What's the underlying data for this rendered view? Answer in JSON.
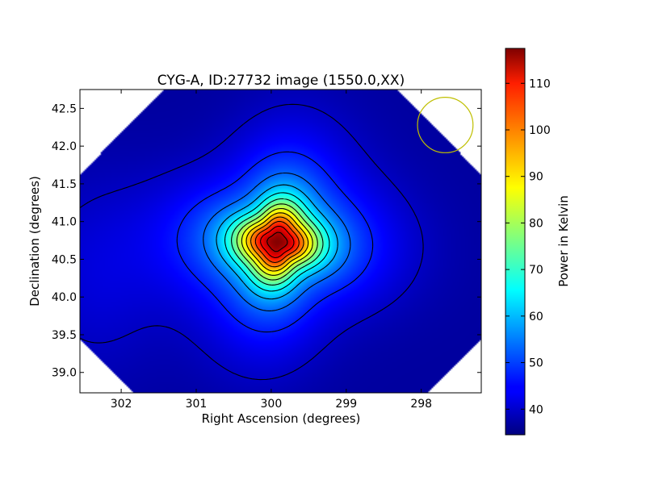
{
  "chart_data": {
    "type": "heatmap",
    "title": "CYG-A, ID:27732 image (1550.0,XX)",
    "xlabel": "Right Ascension (degrees)",
    "ylabel": "Declination (degrees)",
    "xlim": [
      302.55,
      297.2
    ],
    "ylim": [
      38.73,
      42.75
    ],
    "x_ticks": [
      302,
      301,
      300,
      299,
      298
    ],
    "x_tick_labels": [
      "302",
      "301",
      "300",
      "299",
      "298"
    ],
    "y_ticks": [
      39.0,
      39.5,
      40.0,
      40.5,
      41.0,
      41.5,
      42.0,
      42.5
    ],
    "y_tick_labels": [
      "39.0",
      "39.5",
      "40.0",
      "40.5",
      "41.0",
      "41.5",
      "42.0",
      "42.5"
    ],
    "colormap": "jet",
    "colorbar": {
      "label": "Power in Kelvin",
      "range": [
        34.5,
        117.5
      ],
      "ticks": [
        40,
        50,
        60,
        70,
        80,
        90,
        100,
        110
      ],
      "tick_labels": [
        "40",
        "50",
        "60",
        "70",
        "80",
        "90",
        "100",
        "110"
      ]
    },
    "source_peak": {
      "ra": 299.92,
      "dec": 40.73,
      "value": 117
    },
    "background_value": 37,
    "contour_levels": [
      40,
      47,
      53,
      59,
      65,
      71,
      77,
      83,
      89,
      95,
      101,
      107,
      113
    ],
    "beam_marker": {
      "ra": 297.68,
      "dec": 42.28,
      "radius_deg": 0.37,
      "color": "#bfbf00"
    },
    "grid": false
  }
}
